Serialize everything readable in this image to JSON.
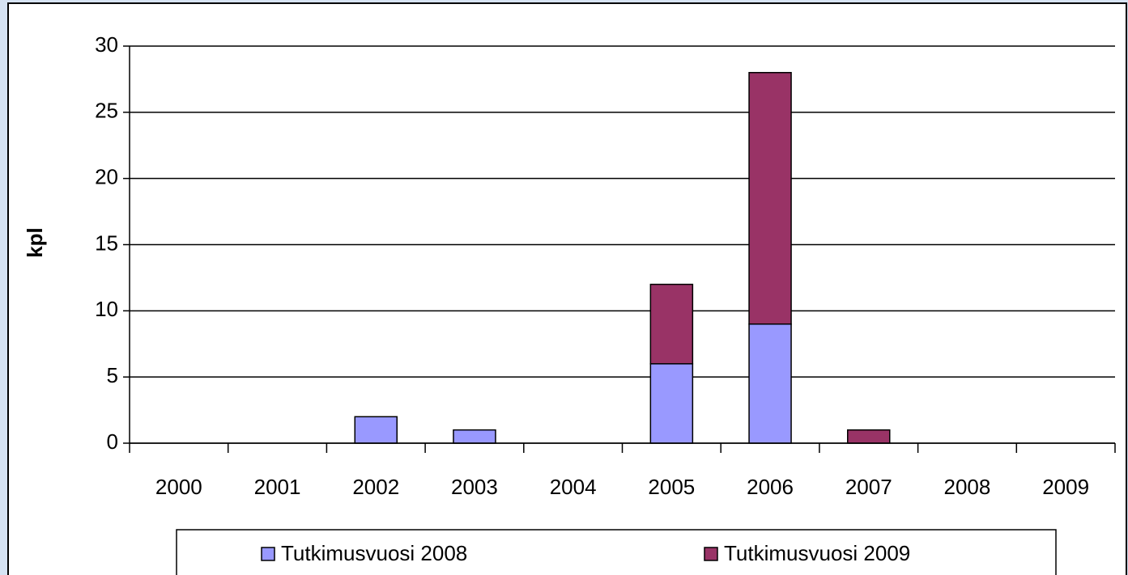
{
  "chart_data": {
    "type": "bar",
    "stacked": true,
    "y_label": "kpl",
    "categories": [
      "2000",
      "2001",
      "2002",
      "2003",
      "2004",
      "2005",
      "2006",
      "2007",
      "2008",
      "2009"
    ],
    "series": [
      {
        "name": "Tutkimusvuosi 2008",
        "color": "#9999ff",
        "values": [
          0,
          0,
          2,
          1,
          0,
          6,
          9,
          0,
          0,
          0
        ]
      },
      {
        "name": "Tutkimusvuosi 2009",
        "color": "#993366",
        "values": [
          0,
          0,
          0,
          0,
          0,
          6,
          19,
          1,
          0,
          0
        ]
      }
    ],
    "ylim": [
      0,
      30
    ],
    "yticks": [
      0,
      5,
      10,
      15,
      20,
      25,
      30
    ],
    "grid": true,
    "legend": "bottom"
  }
}
